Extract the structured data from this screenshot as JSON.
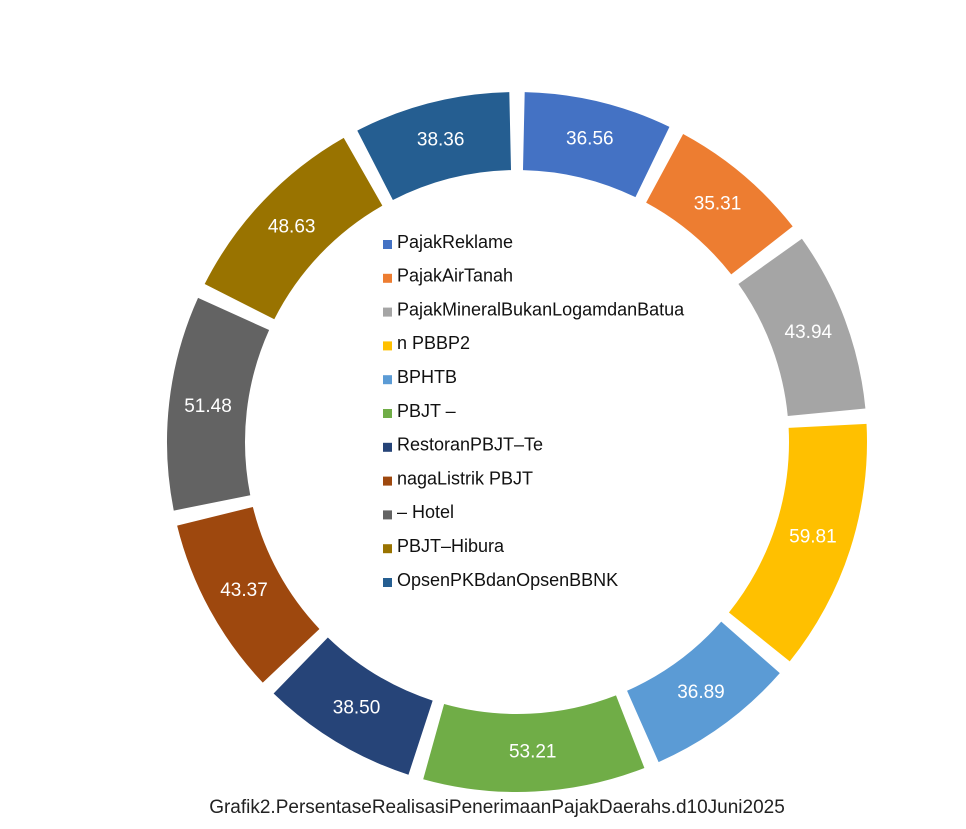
{
  "chart_data": {
    "type": "donut",
    "title": "Grafik2.PersentaseRealisasiPenerimaanPajakDaerahs.d10Juni2025",
    "categories": [
      "PajakReklame",
      "PajakAirTanah",
      "PajakMineralBukanLogamdanBatua",
      "n PBBP2",
      "BPHTB",
      "PBJT –",
      "RestoranPBJT–Te",
      "nagaListrik PBJT",
      "– Hotel",
      "PBJT–Hibura",
      "OpsenPKBdanOpsenBBNK"
    ],
    "values": [
      36.56,
      35.31,
      43.94,
      59.81,
      36.89,
      53.21,
      38.5,
      43.37,
      51.48,
      48.63,
      38.36
    ],
    "value_labels": [
      "36.56",
      "35.31",
      "43.94",
      "59.81",
      "36.89",
      "53.21",
      "38.50",
      "43.37",
      "51.48",
      "48.63",
      "38.36"
    ],
    "colors": [
      "#4472c4",
      "#ed7d31",
      "#a5a5a5",
      "#ffc000",
      "#5b9bd5",
      "#70ad47",
      "#264478",
      "#9e480e",
      "#636363",
      "#997300",
      "#255e91"
    ],
    "legend": "center"
  }
}
